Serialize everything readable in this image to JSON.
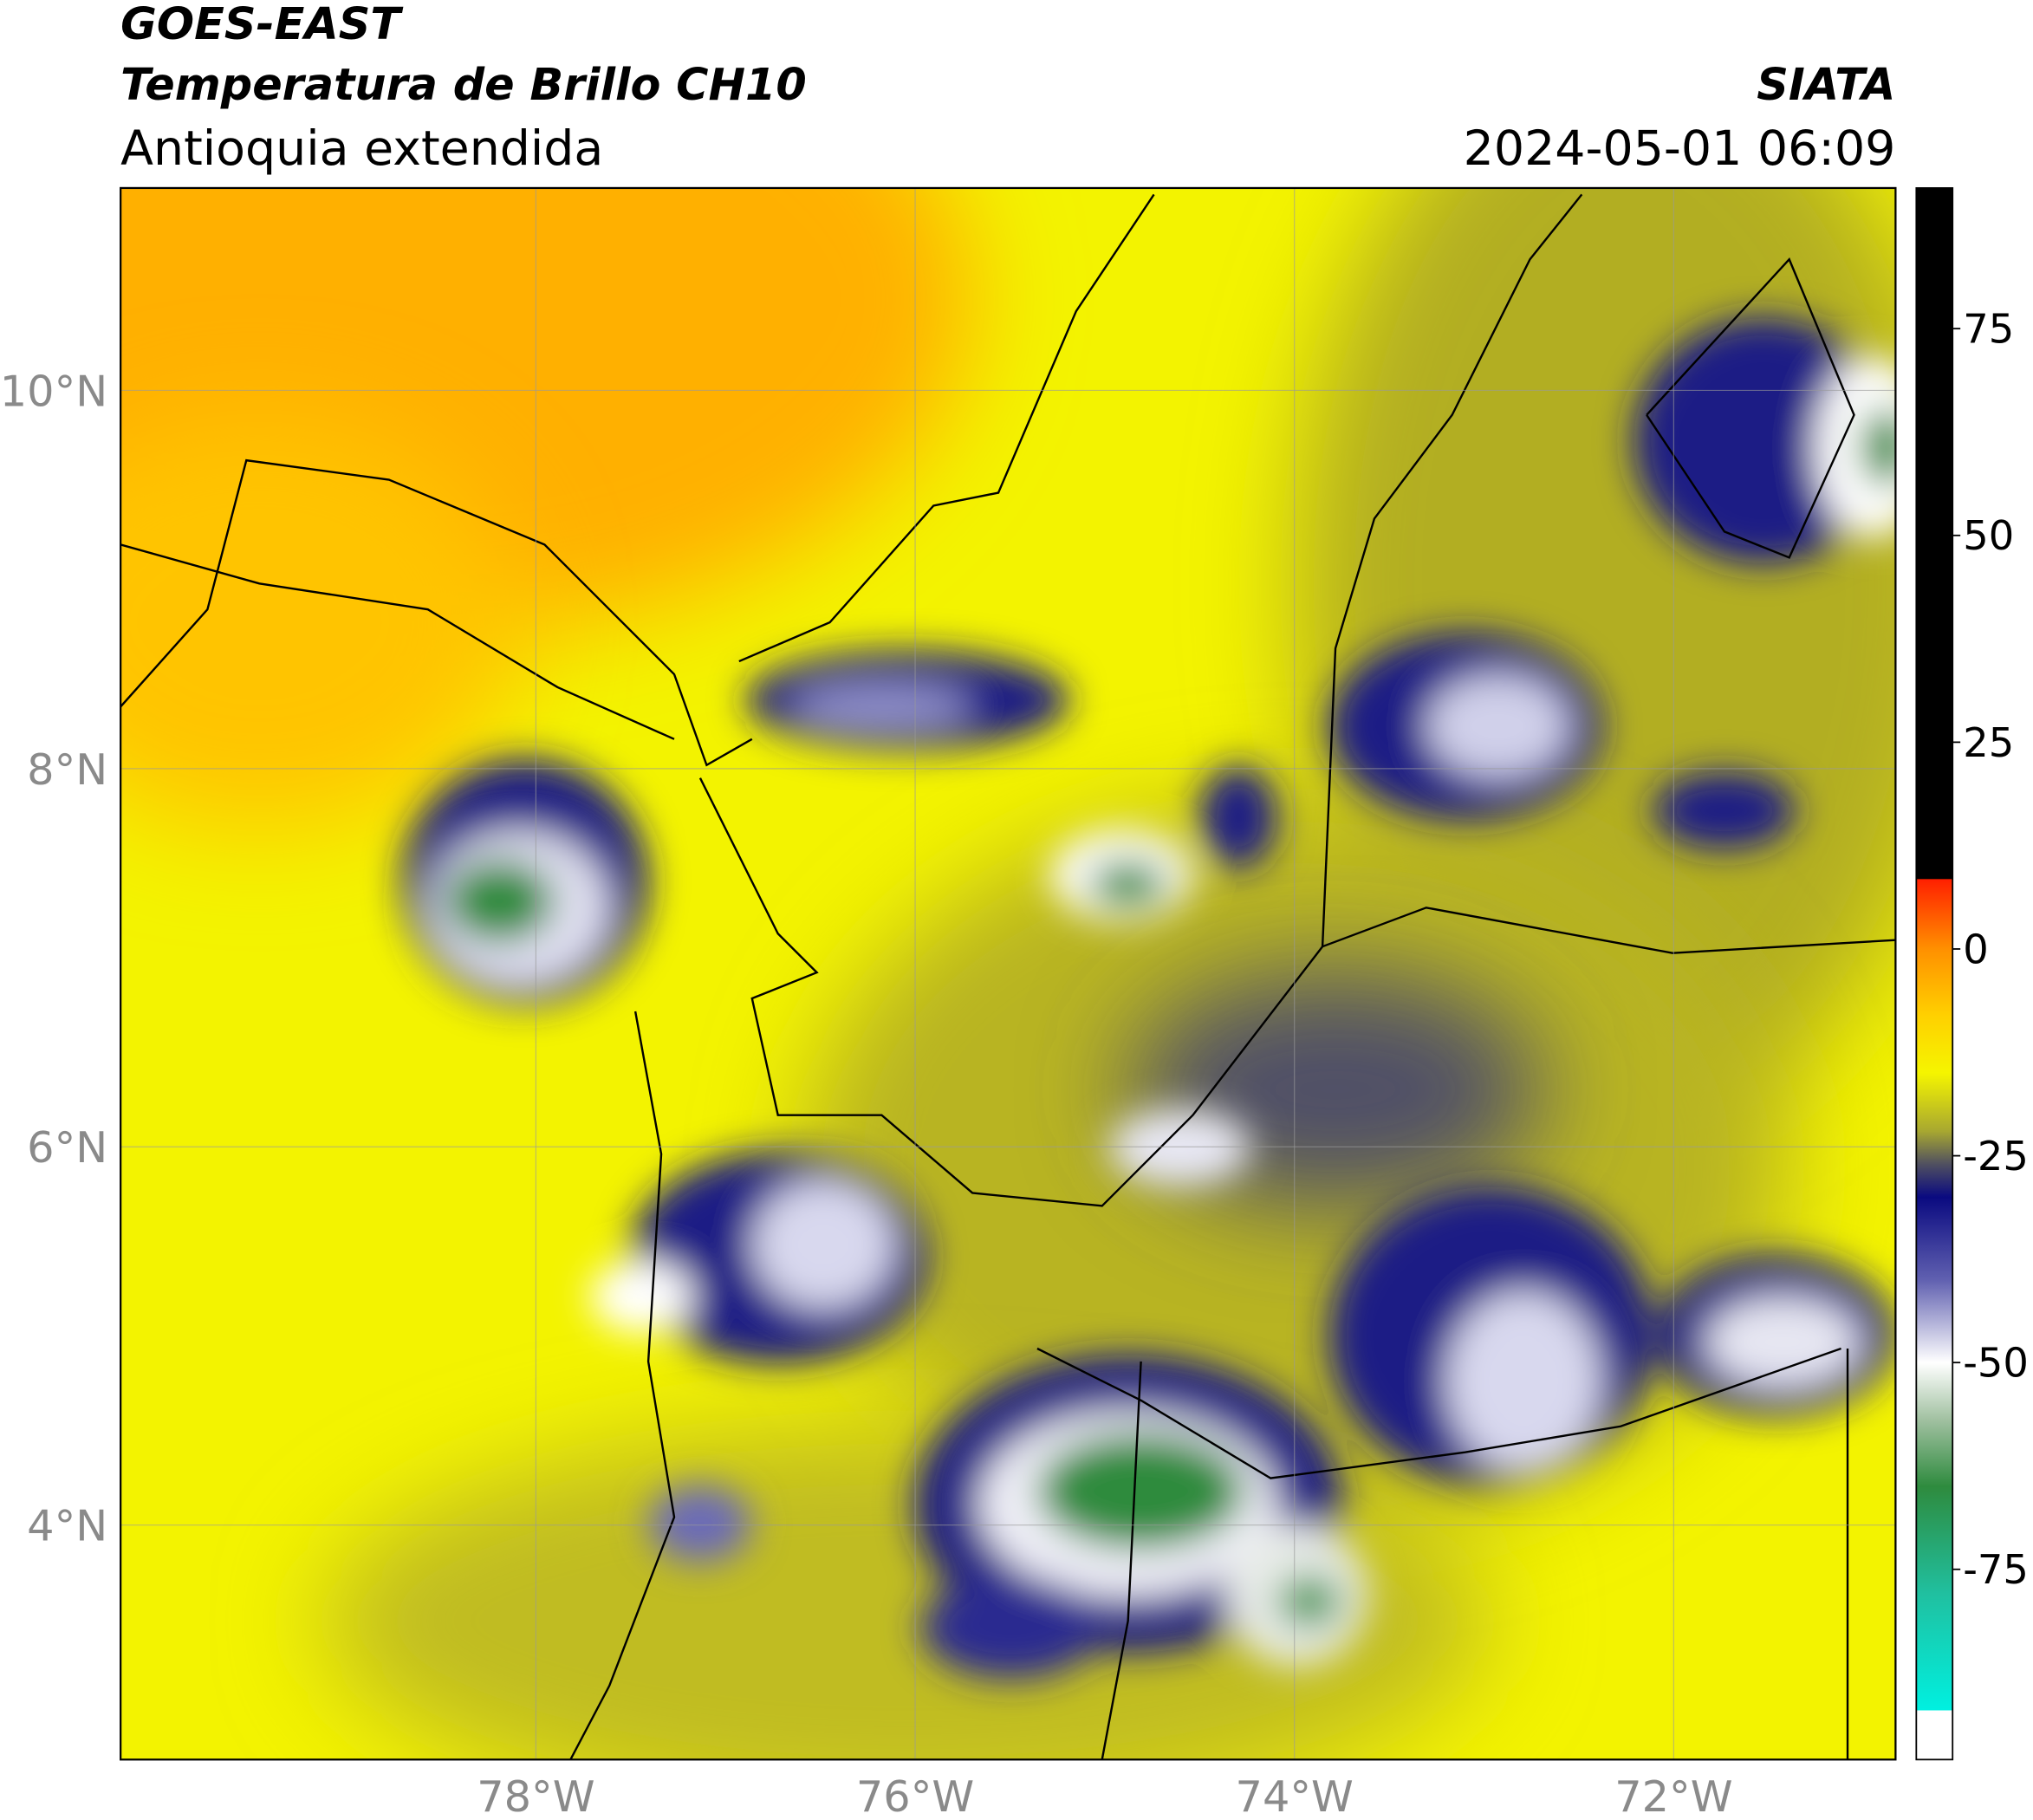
{
  "header": {
    "title": "GOES-EAST",
    "subtitle": "Temperatura de Brillo CH10",
    "region": "Antioquia extendida",
    "source": "SIATA",
    "datetime": "2024-05-01 06:09"
  },
  "map": {
    "xlim": [
      -80.19,
      -70.83
    ],
    "ylim": [
      2.76,
      11.07
    ],
    "grid": true,
    "xticks": [
      {
        "value": -78,
        "label": "78°W"
      },
      {
        "value": -76,
        "label": "76°W"
      },
      {
        "value": -74,
        "label": "74°W"
      },
      {
        "value": -72,
        "label": "72°W"
      }
    ],
    "yticks": [
      {
        "value": 10,
        "label": "10°N"
      },
      {
        "value": 8,
        "label": "8°N"
      },
      {
        "value": 6,
        "label": "6°N"
      },
      {
        "value": 4,
        "label": "4°N"
      }
    ]
  },
  "colorbar": {
    "lim": [
      -98,
      92
    ],
    "ticks": [
      75,
      50,
      25,
      0,
      -25,
      -50,
      -75
    ],
    "colormap": [
      {
        "value": 92,
        "color": "#000000"
      },
      {
        "value": 8.5,
        "color": "#000000"
      },
      {
        "value": 8.4,
        "color": "#ff2000"
      },
      {
        "value": 0,
        "color": "#ff9000"
      },
      {
        "value": -8,
        "color": "#ffd000"
      },
      {
        "value": -15,
        "color": "#f5f500"
      },
      {
        "value": -22,
        "color": "#a8a830"
      },
      {
        "value": -26,
        "color": "#505060"
      },
      {
        "value": -30,
        "color": "#0a0a80"
      },
      {
        "value": -40,
        "color": "#6060b0"
      },
      {
        "value": -50,
        "color": "#ffffff"
      },
      {
        "value": -57,
        "color": "#a0c0a0"
      },
      {
        "value": -65,
        "color": "#2e8b3e"
      },
      {
        "value": -78,
        "color": "#20c0a0"
      },
      {
        "value": -92,
        "color": "#00f0e0"
      },
      {
        "value": -92.1,
        "color": "#ffffff"
      },
      {
        "value": -98,
        "color": "#ffffff"
      }
    ]
  }
}
